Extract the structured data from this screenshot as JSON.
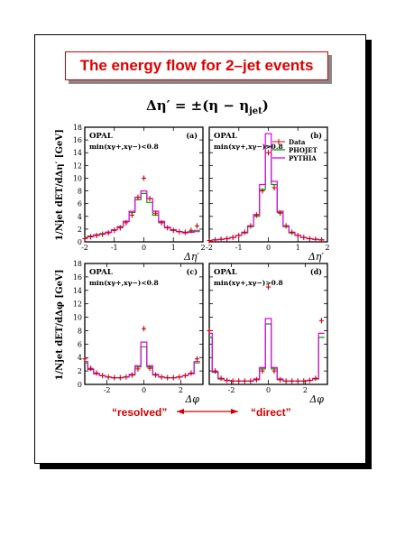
{
  "page": {
    "title": "The energy flow for 2–jet events",
    "formula": "Δη′ = ±(η − ηjet)",
    "resolved_label": "“resolved”",
    "direct_label": "“direct”"
  },
  "ylabels": {
    "top": "1/Njet dET/dΔη′ [GeV]",
    "bottom": "1/Njet dET/dΔφ [GeV]"
  },
  "legend": {
    "data": "Data",
    "phojet": "PHOJET",
    "pythia": "PYTHIA"
  },
  "colors": {
    "data": "#d40000",
    "phojet": "#00a000",
    "pythia": "#e000e0",
    "accent": "#e00000"
  },
  "chart_data": [
    {
      "type": "line",
      "panel": "(a)",
      "experiment": "OPAL",
      "cut": "min(xγ+,xγ−)<0.8",
      "xlabel": "Δη′",
      "xlim": [
        -2,
        2
      ],
      "ylim": [
        0,
        18
      ],
      "xticks": [
        -2,
        -1,
        0,
        1,
        2
      ],
      "yticks": [
        0,
        2,
        4,
        6,
        8,
        10,
        12,
        14,
        16,
        18
      ],
      "x": [
        -2.0,
        -1.8,
        -1.6,
        -1.4,
        -1.2,
        -1.0,
        -0.8,
        -0.6,
        -0.4,
        -0.2,
        0.0,
        0.2,
        0.4,
        0.6,
        0.8,
        1.0,
        1.2,
        1.4,
        1.6,
        1.8
      ],
      "series": [
        {
          "name": "Data",
          "values": [
            0.5,
            0.8,
            1.0,
            1.2,
            1.4,
            1.8,
            2.2,
            3.0,
            4.2,
            7.0,
            10.0,
            6.8,
            4.5,
            3.0,
            2.2,
            1.8,
            1.6,
            1.5,
            1.8,
            2.5
          ]
        },
        {
          "name": "PHOJET",
          "values": [
            0.7,
            0.9,
            1.0,
            1.3,
            1.5,
            1.9,
            2.4,
            3.2,
            4.6,
            6.6,
            7.6,
            6.2,
            4.2,
            3.0,
            2.2,
            1.8,
            1.6,
            1.5,
            1.6,
            1.8
          ]
        },
        {
          "name": "PYTHIA",
          "values": [
            0.6,
            0.8,
            1.1,
            1.2,
            1.5,
            1.9,
            2.3,
            3.2,
            4.8,
            7.0,
            8.0,
            6.8,
            4.8,
            3.2,
            2.3,
            1.9,
            1.6,
            1.4,
            1.5,
            1.6
          ]
        }
      ]
    },
    {
      "type": "line",
      "panel": "(b)",
      "experiment": "OPAL",
      "cut": "min(xγ+,xγ−)>0.8",
      "xlabel": "Δη′",
      "xlim": [
        -2,
        2
      ],
      "ylim": [
        0,
        18
      ],
      "xticks": [
        -2,
        -1,
        0,
        1,
        2
      ],
      "yticks": [
        0,
        2,
        4,
        6,
        8,
        10,
        12,
        14,
        16,
        18
      ],
      "x": [
        -2.0,
        -1.8,
        -1.6,
        -1.4,
        -1.2,
        -1.0,
        -0.8,
        -0.6,
        -0.4,
        -0.2,
        0.0,
        0.2,
        0.4,
        0.6,
        0.8,
        1.0,
        1.2,
        1.4,
        1.6,
        1.8
      ],
      "series": [
        {
          "name": "Data",
          "values": [
            0.2,
            0.3,
            0.4,
            0.5,
            0.7,
            1.0,
            1.5,
            2.5,
            4.2,
            8.0,
            14.0,
            8.5,
            4.5,
            2.5,
            1.5,
            1.0,
            0.7,
            0.5,
            0.4,
            0.3
          ]
        },
        {
          "name": "PHOJET",
          "values": [
            0.2,
            0.3,
            0.4,
            0.5,
            0.7,
            1.0,
            1.4,
            2.4,
            4.0,
            8.2,
            15.0,
            9.0,
            4.6,
            2.4,
            1.4,
            1.0,
            0.7,
            0.5,
            0.4,
            0.3
          ]
        },
        {
          "name": "PYTHIA",
          "values": [
            0.2,
            0.3,
            0.4,
            0.5,
            0.7,
            1.0,
            1.5,
            2.5,
            4.3,
            9.0,
            17.0,
            9.5,
            4.8,
            2.5,
            1.5,
            1.0,
            0.7,
            0.5,
            0.4,
            0.3
          ]
        }
      ]
    },
    {
      "type": "line",
      "panel": "(c)",
      "experiment": "OPAL",
      "cut": "min(xγ+,xγ−)<0.8",
      "xlabel": "Δφ",
      "xlim": [
        -3.2,
        3.2
      ],
      "ylim": [
        0,
        18
      ],
      "xticks": [
        -2,
        0,
        2
      ],
      "yticks": [
        0,
        2,
        4,
        6,
        8,
        10,
        12,
        14,
        16,
        18
      ],
      "x": [
        -3.2,
        -2.88,
        -2.56,
        -2.24,
        -1.92,
        -1.6,
        -1.28,
        -0.96,
        -0.64,
        -0.32,
        0.0,
        0.32,
        0.64,
        0.96,
        1.28,
        1.6,
        1.92,
        2.24,
        2.56,
        2.88
      ],
      "series": [
        {
          "name": "Data",
          "values": [
            3.8,
            2.4,
            1.7,
            1.3,
            1.1,
            1.0,
            1.0,
            1.1,
            1.4,
            2.3,
            8.3,
            2.4,
            1.4,
            1.1,
            1.0,
            1.0,
            1.1,
            1.3,
            1.7,
            3.8
          ]
        },
        {
          "name": "PHOJET",
          "values": [
            3.2,
            2.2,
            1.6,
            1.3,
            1.1,
            1.0,
            1.0,
            1.1,
            1.4,
            2.6,
            5.6,
            2.6,
            1.4,
            1.1,
            1.0,
            1.0,
            1.1,
            1.3,
            1.6,
            3.2
          ]
        },
        {
          "name": "PYTHIA",
          "values": [
            3.4,
            2.3,
            1.6,
            1.3,
            1.1,
            1.0,
            1.0,
            1.1,
            1.5,
            2.8,
            6.3,
            2.8,
            1.5,
            1.1,
            1.0,
            1.0,
            1.1,
            1.3,
            1.6,
            3.4
          ]
        }
      ]
    },
    {
      "type": "line",
      "panel": "(d)",
      "experiment": "OPAL",
      "cut": "min(xγ+,xγ−)>0.8",
      "xlabel": "Δφ",
      "xlim": [
        -3.2,
        3.2
      ],
      "ylim": [
        0,
        18
      ],
      "xticks": [
        -2,
        0,
        2
      ],
      "yticks": [
        0,
        2,
        4,
        6,
        8,
        10,
        12,
        14,
        16,
        18
      ],
      "x": [
        -3.2,
        -2.88,
        -2.56,
        -2.24,
        -1.92,
        -1.6,
        -1.28,
        -0.96,
        -0.64,
        -0.32,
        0.0,
        0.32,
        0.64,
        0.96,
        1.28,
        1.6,
        1.92,
        2.24,
        2.56,
        2.88
      ],
      "series": [
        {
          "name": "Data",
          "values": [
            8.0,
            2.0,
            0.9,
            0.6,
            0.5,
            0.5,
            0.5,
            0.5,
            0.7,
            2.0,
            14.5,
            2.0,
            0.7,
            0.5,
            0.5,
            0.5,
            0.5,
            0.6,
            0.9,
            9.5
          ]
        },
        {
          "name": "PHOJET",
          "values": [
            7.0,
            1.8,
            0.8,
            0.6,
            0.5,
            0.5,
            0.5,
            0.5,
            0.7,
            2.3,
            9.0,
            2.3,
            0.7,
            0.5,
            0.5,
            0.5,
            0.5,
            0.6,
            0.8,
            7.0
          ]
        },
        {
          "name": "PYTHIA",
          "values": [
            7.6,
            1.9,
            0.9,
            0.6,
            0.5,
            0.5,
            0.5,
            0.5,
            0.8,
            2.5,
            9.8,
            2.5,
            0.8,
            0.5,
            0.5,
            0.5,
            0.5,
            0.6,
            0.9,
            7.6
          ]
        }
      ]
    }
  ]
}
